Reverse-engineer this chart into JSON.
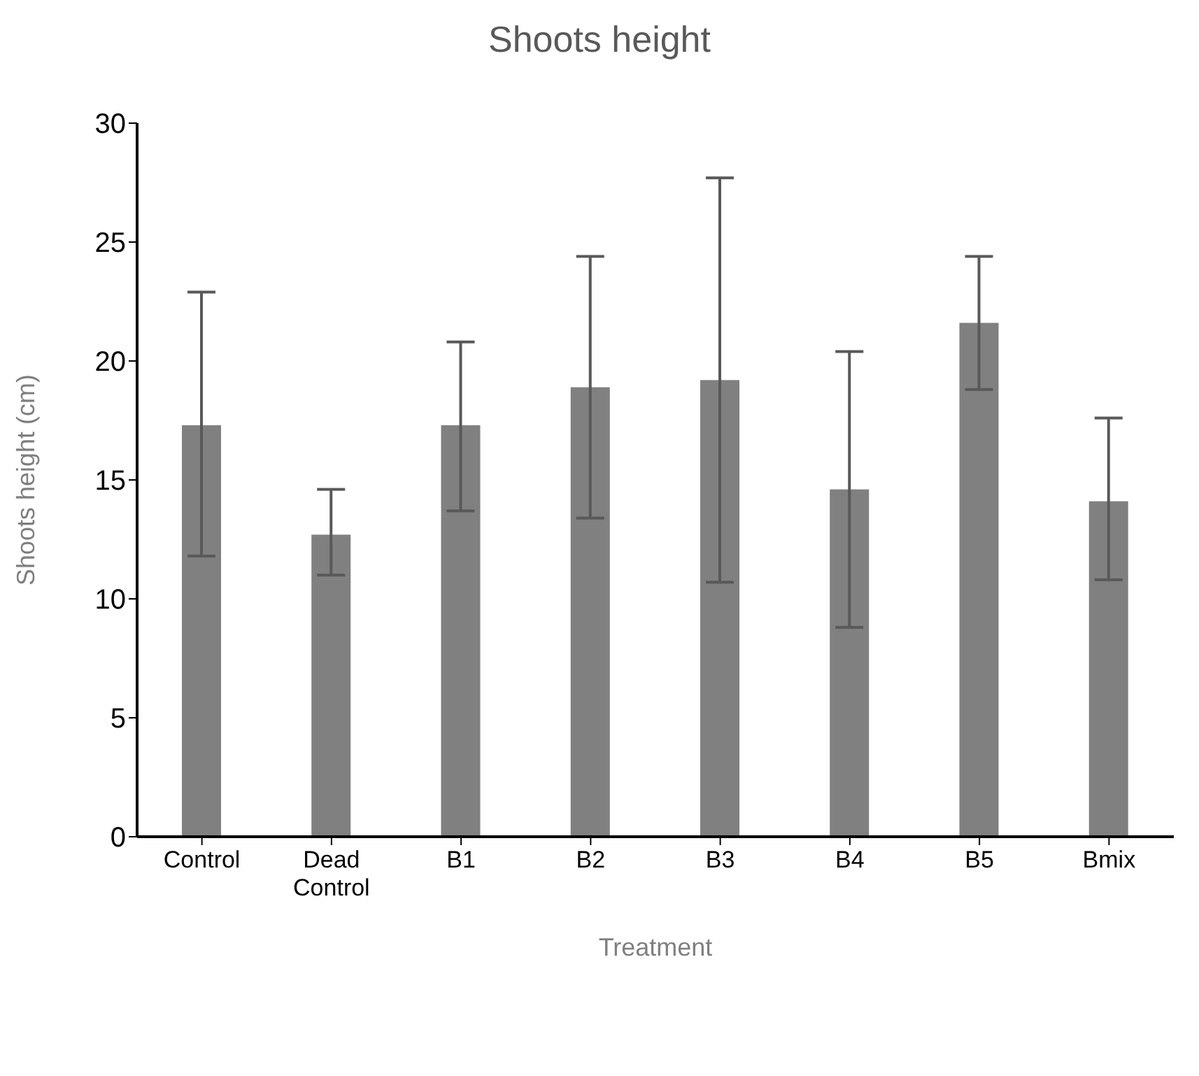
{
  "chart_data": {
    "type": "bar",
    "title": "Shoots height",
    "xlabel": "Treatment",
    "ylabel": "Shoots height (cm)",
    "categories": [
      "Control",
      "Dead Control",
      "B1",
      "B2",
      "B3",
      "B4",
      "B5",
      "Bmix"
    ],
    "values": [
      17.3,
      12.7,
      17.3,
      18.9,
      19.2,
      14.6,
      21.6,
      14.1
    ],
    "errors": [
      [
        11.8,
        22.9
      ],
      [
        11.0,
        14.6
      ],
      [
        13.7,
        20.8
      ],
      [
        13.4,
        24.4
      ],
      [
        10.7,
        27.7
      ],
      [
        8.8,
        20.4
      ],
      [
        18.8,
        24.4
      ],
      [
        10.8,
        17.6
      ]
    ],
    "color": "#808080",
    "ylim": [
      0,
      30
    ],
    "yticks": [
      0,
      5,
      10,
      15,
      20,
      25,
      30
    ],
    "grid": false,
    "legend": false
  }
}
